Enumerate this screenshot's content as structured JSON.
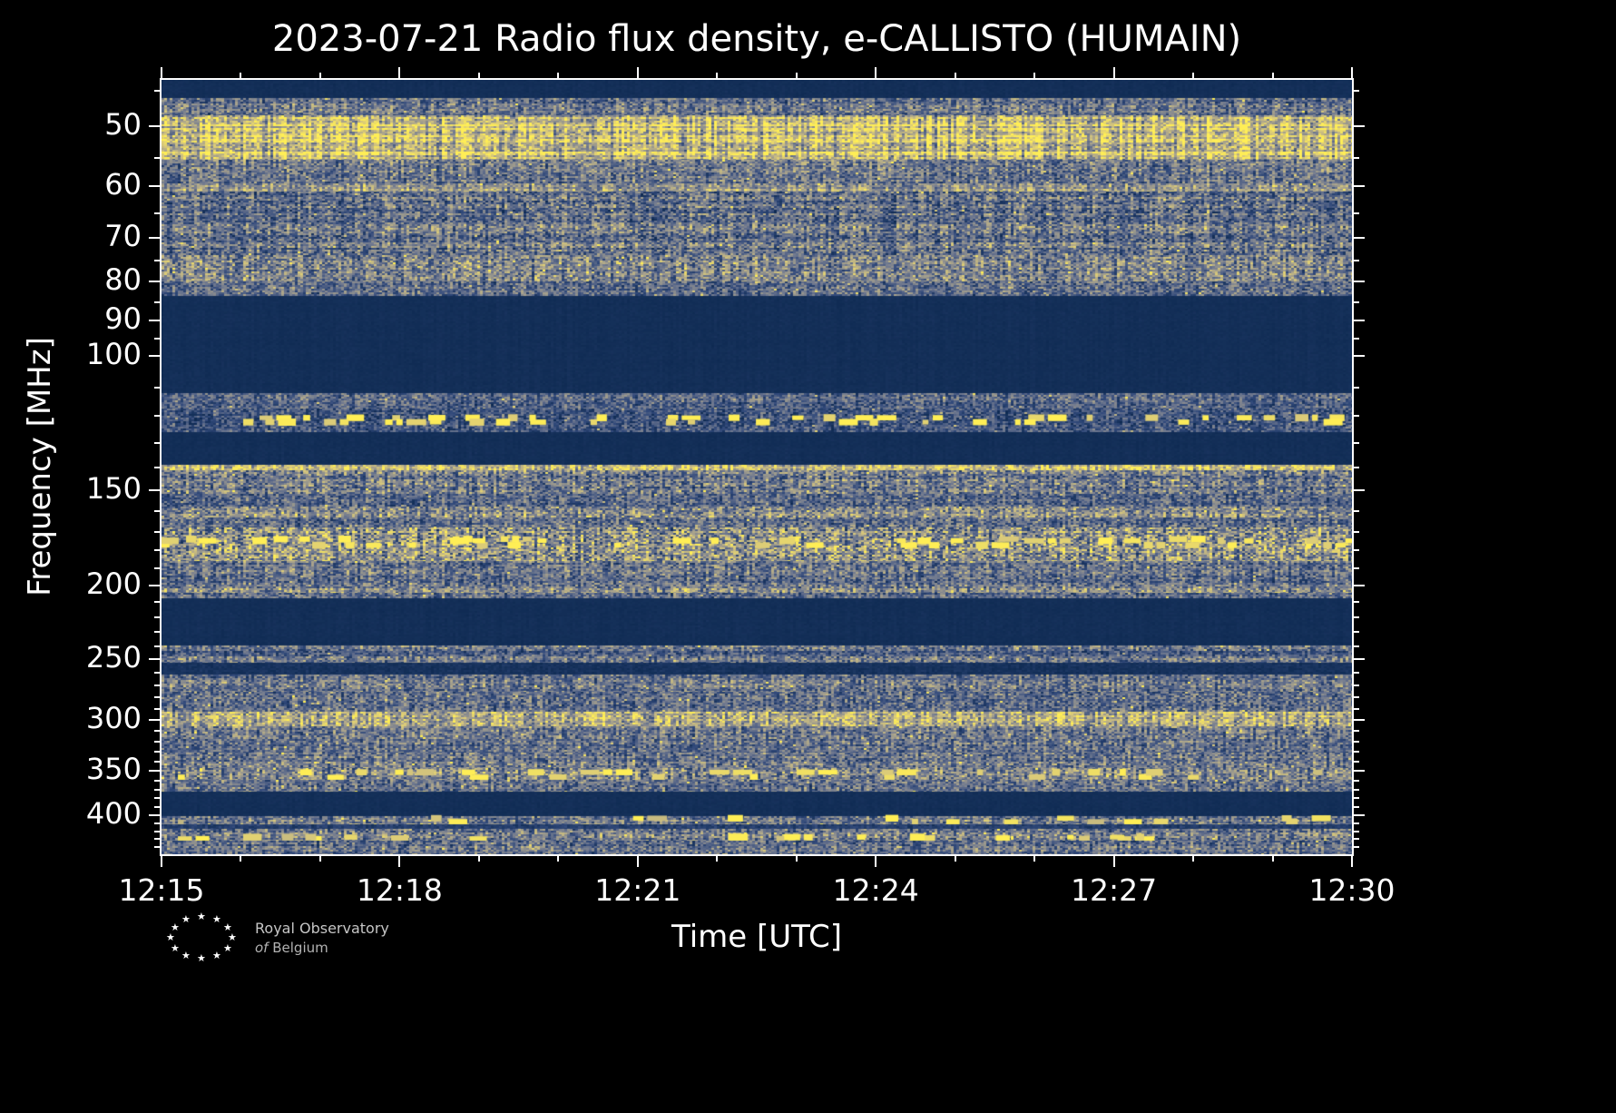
{
  "chart_data": {
    "type": "heatmap",
    "title": "2023-07-21 Radio flux density, e-CALLISTO (HUMAIN)",
    "xlabel": "Time [UTC]",
    "ylabel": "Frequency [MHz]",
    "x_ticks": {
      "labels": [
        "12:15",
        "12:18",
        "12:21",
        "12:24",
        "12:27",
        "12:30"
      ],
      "minutes": [
        0,
        3,
        6,
        9,
        12,
        15
      ]
    },
    "x_minor_minutes": [
      1,
      2,
      4,
      5,
      7,
      8,
      10,
      11,
      13,
      14
    ],
    "x_range_minutes": [
      0,
      15
    ],
    "y_scale": "log",
    "y_range_mhz": [
      43.5,
      450
    ],
    "y_ticks_mhz": [
      50,
      60,
      70,
      80,
      90,
      100,
      150,
      200,
      250,
      300,
      350,
      400
    ],
    "y_minor_ticks_mhz": [
      45,
      55,
      65,
      75,
      85,
      95,
      110,
      120,
      130,
      140,
      160,
      170,
      180,
      190,
      210,
      220,
      230,
      240,
      260,
      270,
      280,
      290,
      310,
      320,
      330,
      340,
      360,
      370,
      380,
      390,
      410,
      420,
      430,
      440
    ],
    "legend": "none",
    "grid": false,
    "colors": {
      "background": "#000000",
      "text": "#ffffff",
      "frame": "#ffffff",
      "quiet_navy": "#0e2a52",
      "bright_yellow": "#ffee55",
      "logo_text": "#bdbdbd"
    },
    "colormap": [
      {
        "pos": 0.0,
        "color": "#0e2a52"
      },
      {
        "pos": 0.22,
        "color": "#31497a"
      },
      {
        "pos": 0.45,
        "color": "#70798f"
      },
      {
        "pos": 0.65,
        "color": "#a8a28c"
      },
      {
        "pos": 0.82,
        "color": "#d9c97a"
      },
      {
        "pos": 1.0,
        "color": "#ffee55"
      }
    ],
    "bands": [
      {
        "f0": 43.5,
        "f1": 46.0,
        "base": 0.03,
        "speckle": 0.02
      },
      {
        "f0": 46.0,
        "f1": 48.5,
        "base": 0.4,
        "speckle": 0.3
      },
      {
        "f0": 48.5,
        "f1": 55.5,
        "base": 0.78,
        "speckle": 0.3,
        "rowvar": 0.25
      },
      {
        "f0": 55.5,
        "f1": 59.5,
        "base": 0.42,
        "speckle": 0.3
      },
      {
        "f0": 59.5,
        "f1": 61.0,
        "base": 0.58,
        "speckle": 0.25
      },
      {
        "f0": 61.0,
        "f1": 74.0,
        "base": 0.4,
        "speckle": 0.33,
        "rowvar": 0.25
      },
      {
        "f0": 74.0,
        "f1": 80.0,
        "base": 0.47,
        "speckle": 0.33
      },
      {
        "f0": 80.0,
        "f1": 83.5,
        "base": 0.38,
        "speckle": 0.3
      },
      {
        "f0": 83.5,
        "f1": 112.0,
        "base": 0.03,
        "speckle": 0.02
      },
      {
        "f0": 112.0,
        "f1": 117.5,
        "base": 0.34,
        "speckle": 0.28
      },
      {
        "f0": 117.5,
        "f1": 126.0,
        "base": 0.26,
        "speckle": 0.26,
        "blobs": {
          "rows": 2,
          "p": 0.22,
          "intensity": 1.0
        }
      },
      {
        "f0": 126.0,
        "f1": 139.0,
        "base": 0.03,
        "speckle": 0.02
      },
      {
        "f0": 139.0,
        "f1": 141.5,
        "base": 0.82,
        "speckle": 0.25
      },
      {
        "f0": 141.5,
        "f1": 152.0,
        "base": 0.44,
        "speckle": 0.33
      },
      {
        "f0": 152.0,
        "f1": 158.0,
        "base": 0.34,
        "speckle": 0.28
      },
      {
        "f0": 158.0,
        "f1": 163.0,
        "base": 0.52,
        "speckle": 0.33
      },
      {
        "f0": 163.0,
        "f1": 168.0,
        "base": 0.4,
        "speckle": 0.3
      },
      {
        "f0": 168.0,
        "f1": 186.0,
        "base": 0.56,
        "speckle": 0.42,
        "blobs": {
          "rows": 3,
          "p": 0.12,
          "intensity": 1.0
        }
      },
      {
        "f0": 186.0,
        "f1": 201.0,
        "base": 0.4,
        "speckle": 0.3
      },
      {
        "f0": 201.0,
        "f1": 204.5,
        "base": 0.5,
        "speckle": 0.3
      },
      {
        "f0": 204.5,
        "f1": 208.0,
        "base": 0.34,
        "speckle": 0.28
      },
      {
        "f0": 208.0,
        "f1": 240.0,
        "base": 0.03,
        "speckle": 0.02
      },
      {
        "f0": 240.0,
        "f1": 244.0,
        "base": 0.44,
        "speckle": 0.3
      },
      {
        "f0": 244.0,
        "f1": 248.0,
        "base": 0.3,
        "speckle": 0.25
      },
      {
        "f0": 248.0,
        "f1": 253.0,
        "base": 0.44,
        "speckle": 0.3
      },
      {
        "f0": 253.0,
        "f1": 262.0,
        "base": 0.06,
        "speckle": 0.05
      },
      {
        "f0": 262.0,
        "f1": 276.0,
        "base": 0.42,
        "speckle": 0.3
      },
      {
        "f0": 276.0,
        "f1": 293.0,
        "base": 0.38,
        "speckle": 0.3
      },
      {
        "f0": 293.0,
        "f1": 306.0,
        "base": 0.7,
        "speckle": 0.3
      },
      {
        "f0": 306.0,
        "f1": 318.0,
        "base": 0.44,
        "speckle": 0.3
      },
      {
        "f0": 318.0,
        "f1": 332.0,
        "base": 0.38,
        "speckle": 0.28
      },
      {
        "f0": 332.0,
        "f1": 347.0,
        "base": 0.44,
        "speckle": 0.3
      },
      {
        "f0": 347.0,
        "f1": 360.0,
        "base": 0.48,
        "speckle": 0.33,
        "blobs": {
          "rows": 2,
          "p": 0.15,
          "intensity": 0.95
        }
      },
      {
        "f0": 360.0,
        "f1": 373.0,
        "base": 0.4,
        "speckle": 0.3
      },
      {
        "f0": 373.0,
        "f1": 402.0,
        "base": 0.03,
        "speckle": 0.02
      },
      {
        "f0": 402.0,
        "f1": 412.0,
        "base": 0.45,
        "speckle": 0.33,
        "blobs": {
          "rows": 2,
          "p": 0.1,
          "intensity": 0.9
        }
      },
      {
        "f0": 412.0,
        "f1": 417.0,
        "base": 0.14,
        "speckle": 0.1
      },
      {
        "f0": 417.0,
        "f1": 432.0,
        "base": 0.45,
        "speckle": 0.33,
        "blobs": {
          "rows": 2,
          "p": 0.12,
          "intensity": 0.92
        }
      },
      {
        "f0": 432.0,
        "f1": 450.0,
        "base": 0.4,
        "speckle": 0.3
      }
    ]
  },
  "footer": {
    "org_name_line1": "Royal Observatory",
    "org_name_line2_prefix": "of",
    "org_name_line2": "Belgium"
  }
}
